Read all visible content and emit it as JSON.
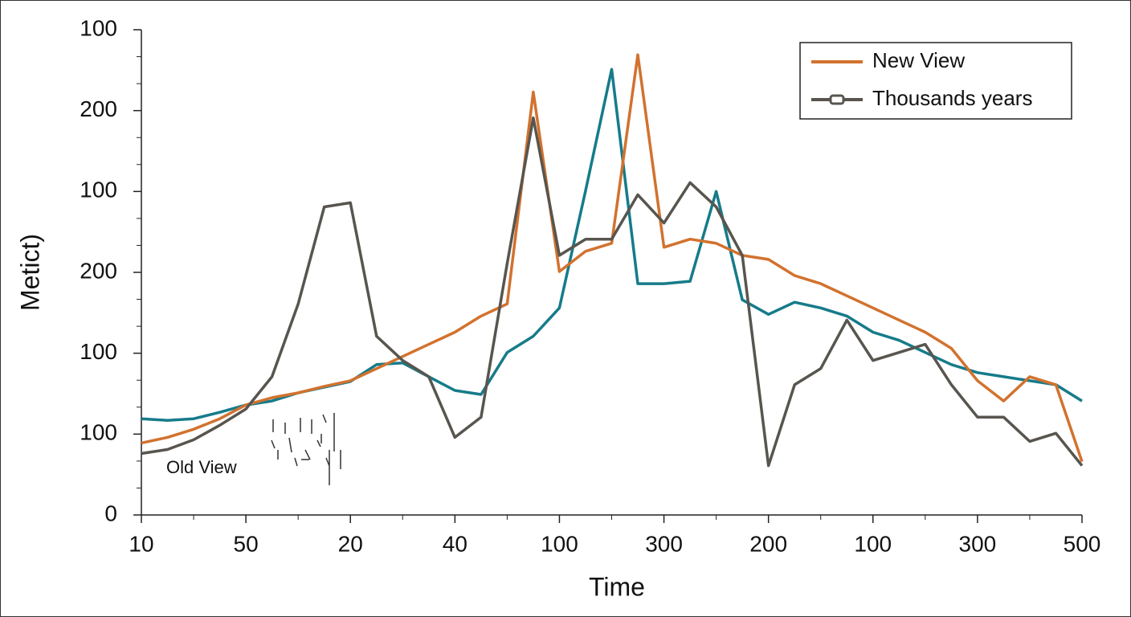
{
  "chart_data": {
    "type": "line",
    "x_label": "Time",
    "y_label": "Metict)",
    "annotation": "Old View",
    "xlim": [
      0,
      900
    ],
    "ylim": [
      0,
      600
    ],
    "xticks": [
      {
        "value": 0,
        "label": "10"
      },
      {
        "value": 100,
        "label": "50"
      },
      {
        "value": 200,
        "label": "20"
      },
      {
        "value": 300,
        "label": "40"
      },
      {
        "value": 400,
        "label": "100"
      },
      {
        "value": 500,
        "label": "300"
      },
      {
        "value": 600,
        "label": "200"
      },
      {
        "value": 700,
        "label": "100"
      },
      {
        "value": 800,
        "label": "300"
      },
      {
        "value": 900,
        "label": "500"
      }
    ],
    "yticks": [
      0,
      100,
      {
        "value": 200,
        "label": "100"
      },
      {
        "value": 300,
        "label": "200"
      },
      {
        "value": 400,
        "label": "100"
      },
      {
        "value": 500,
        "label": "200"
      },
      {
        "value": 600,
        "label": "100"
      }
    ],
    "legend": "upper right",
    "x": [
      0,
      25,
      50,
      75,
      100,
      125,
      150,
      175,
      200,
      225,
      250,
      275,
      300,
      325,
      350,
      375,
      400,
      425,
      450,
      475,
      500,
      525,
      550,
      575,
      600,
      625,
      650,
      675,
      700,
      725,
      750,
      775,
      800,
      825,
      850,
      875,
      900
    ],
    "series": [
      {
        "color": "#167b8a",
        "values": [
          119,
          117,
          119,
          127,
          136,
          141,
          151,
          158,
          165,
          186,
          188,
          171,
          154,
          149,
          201,
          221,
          256,
          401,
          551,
          286,
          286,
          289,
          400,
          266,
          248,
          263,
          256,
          246,
          226,
          216,
          201,
          186,
          176,
          171,
          166,
          161,
          141
        ]
      },
      {
        "name": "New View",
        "color": "#d2722e",
        "values": [
          89,
          96,
          106,
          119,
          136,
          145,
          151,
          159,
          166,
          181,
          196,
          211,
          226,
          246,
          261,
          523,
          301,
          326,
          336,
          569,
          331,
          341,
          336,
          321,
          316,
          296,
          286,
          271,
          256,
          241,
          226,
          206,
          166,
          141,
          171,
          161,
          66
        ]
      },
      {
        "name": "Thousands years",
        "color": "#58554f",
        "values": [
          76,
          81,
          93,
          111,
          131,
          171,
          261,
          381,
          386,
          221,
          191,
          171,
          96,
          121,
          311,
          491,
          321,
          341,
          341,
          396,
          361,
          411,
          381,
          321,
          61,
          161,
          181,
          241,
          191,
          201,
          211,
          161,
          121,
          121,
          91,
          101,
          61
        ]
      }
    ]
  }
}
